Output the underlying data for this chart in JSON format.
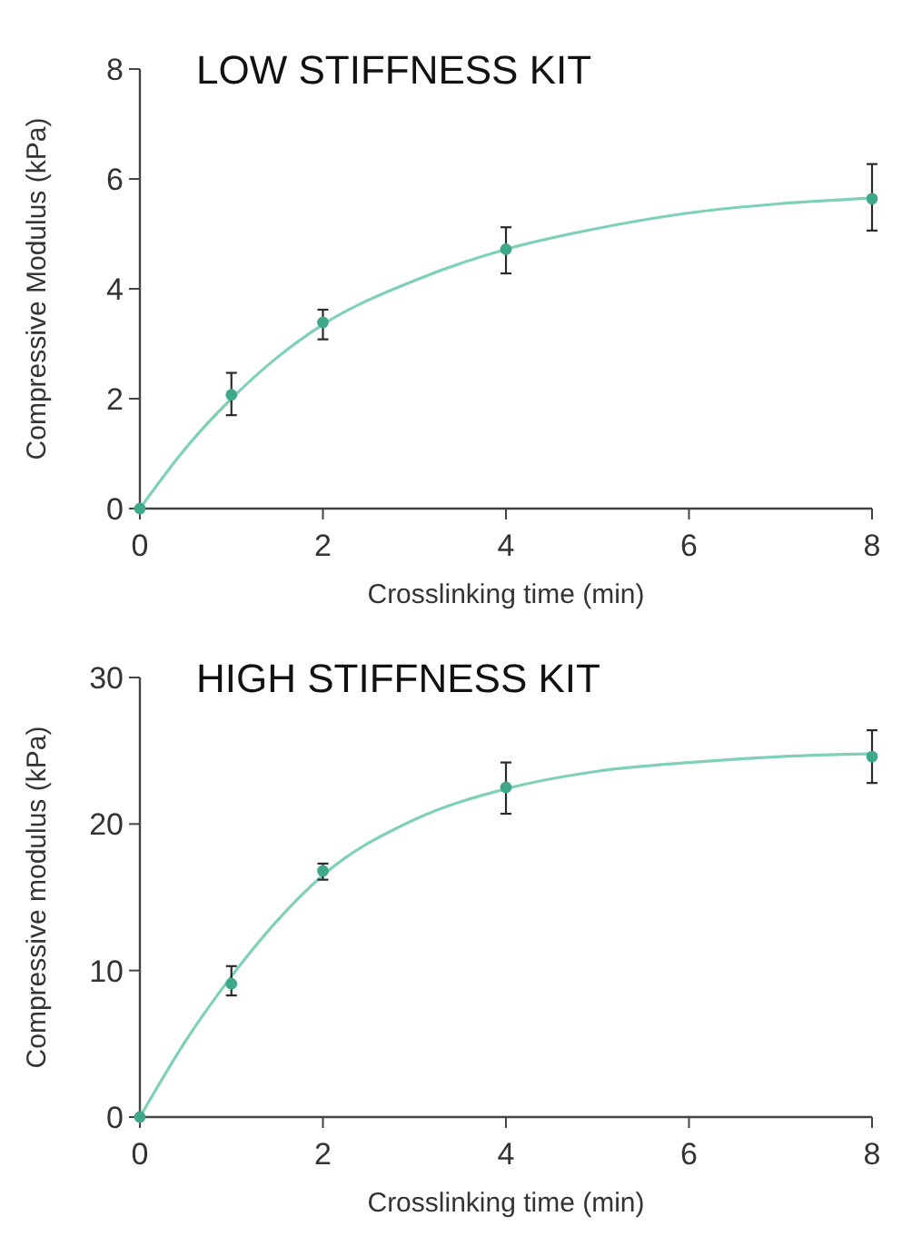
{
  "chart_data": [
    {
      "type": "scatter",
      "title": "LOW STIFFNESS KIT",
      "xlabel": "Crosslinking time (min)",
      "ylabel": "Compressive Modulus (kPa)",
      "xlim": [
        0,
        8
      ],
      "xticks": [
        0,
        2,
        4,
        6,
        8
      ],
      "ylim": [
        0,
        8
      ],
      "yticks": [
        0,
        2,
        4,
        6,
        8
      ],
      "series": [
        {
          "type": "line",
          "marker": "none",
          "color": "#7fd0b8",
          "x": [
            0,
            0.5,
            1,
            1.5,
            2,
            3,
            4,
            5,
            6,
            7,
            8
          ],
          "values": [
            0,
            1.1,
            2.0,
            2.75,
            3.35,
            4.15,
            4.72,
            5.1,
            5.38,
            5.55,
            5.65
          ]
        },
        {
          "marker": "circle",
          "color": "#3fa88a",
          "x": [
            0,
            1,
            2,
            4,
            8
          ],
          "values": [
            0,
            2.07,
            3.39,
            4.72,
            5.64
          ],
          "errors": [
            null,
            [
              1.7,
              2.47
            ],
            [
              3.08,
              3.62
            ],
            [
              4.28,
              5.12
            ],
            [
              5.06,
              6.27
            ]
          ]
        }
      ]
    },
    {
      "type": "scatter",
      "title": "HIGH STIFFNESS KIT",
      "xlabel": "Crosslinking time (min)",
      "ylabel": "Compressive modulus (kPa)",
      "xlim": [
        0,
        8
      ],
      "xticks": [
        0,
        2,
        4,
        6,
        8
      ],
      "ylim": [
        0,
        30
      ],
      "yticks": [
        0,
        10,
        20,
        30
      ],
      "series": [
        {
          "type": "line",
          "marker": "none",
          "color": "#7fd0b8",
          "x": [
            0,
            0.5,
            1,
            1.5,
            2,
            3,
            4,
            5,
            6,
            7,
            8
          ],
          "values": [
            0,
            5.2,
            9.6,
            13.4,
            16.5,
            20.3,
            22.4,
            23.6,
            24.2,
            24.6,
            24.8
          ]
        },
        {
          "marker": "circle",
          "color": "#3fa88a",
          "x": [
            0,
            1,
            2,
            4,
            8
          ],
          "values": [
            0,
            9.1,
            16.8,
            22.5,
            24.6
          ],
          "errors": [
            null,
            [
              8.3,
              10.3
            ],
            [
              16.2,
              17.3
            ],
            [
              20.7,
              24.2
            ],
            [
              22.8,
              26.4
            ]
          ]
        }
      ]
    }
  ]
}
